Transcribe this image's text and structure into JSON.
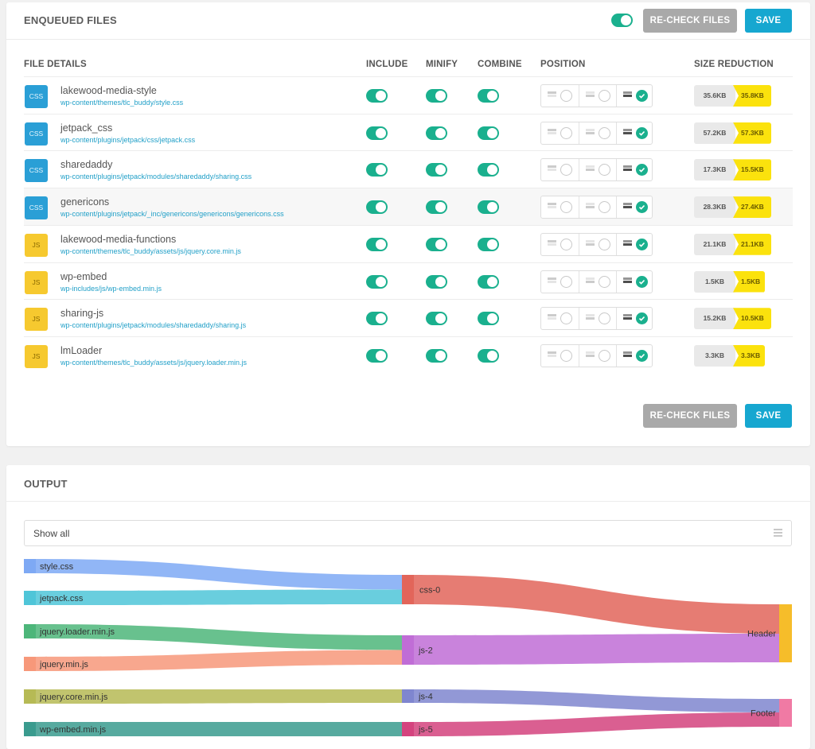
{
  "enqueued": {
    "title": "ENQUEUED FILES",
    "recheck_label": "RE-CHECK FILES",
    "save_label": "SAVE",
    "columns": {
      "file_details": "FILE DETAILS",
      "include": "INCLUDE",
      "minify": "MINIFY",
      "combine": "COMBINE",
      "position": "POSITION",
      "size_reduction": "SIZE REDUCTION"
    },
    "files": [
      {
        "type": "CSS",
        "name": "lakewood-media-style",
        "path": "wp-content/themes/tlc_buddy/style.css",
        "include": true,
        "minify": true,
        "combine": true,
        "position": "footer",
        "size_original": "35.6KB",
        "size_reduced": "35.8KB"
      },
      {
        "type": "CSS",
        "name": "jetpack_css",
        "path": "wp-content/plugins/jetpack/css/jetpack.css",
        "include": true,
        "minify": true,
        "combine": true,
        "position": "footer",
        "size_original": "57.2KB",
        "size_reduced": "57.3KB"
      },
      {
        "type": "CSS",
        "name": "sharedaddy",
        "path": "wp-content/plugins/jetpack/modules/sharedaddy/sharing.css",
        "include": true,
        "minify": true,
        "combine": true,
        "position": "footer",
        "size_original": "17.3KB",
        "size_reduced": "15.5KB"
      },
      {
        "type": "CSS",
        "name": "genericons",
        "path": "wp-content/plugins/jetpack/_inc/genericons/genericons/genericons.css",
        "include": true,
        "minify": true,
        "combine": true,
        "position": "footer",
        "size_original": "28.3KB",
        "size_reduced": "27.4KB"
      },
      {
        "type": "JS",
        "name": "lakewood-media-functions",
        "path": "wp-content/themes/tlc_buddy/assets/js/jquery.core.min.js",
        "include": true,
        "minify": true,
        "combine": true,
        "position": "footer",
        "size_original": "21.1KB",
        "size_reduced": "21.1KB"
      },
      {
        "type": "JS",
        "name": "wp-embed",
        "path": "wp-includes/js/wp-embed.min.js",
        "include": true,
        "minify": true,
        "combine": true,
        "position": "footer",
        "size_original": "1.5KB",
        "size_reduced": "1.5KB"
      },
      {
        "type": "JS",
        "name": "sharing-js",
        "path": "wp-content/plugins/jetpack/modules/sharedaddy/sharing.js",
        "include": true,
        "minify": true,
        "combine": true,
        "position": "footer",
        "size_original": "15.2KB",
        "size_reduced": "10.5KB"
      },
      {
        "type": "JS",
        "name": "lmLoader",
        "path": "wp-content/themes/tlc_buddy/assets/js/jquery.loader.min.js",
        "include": true,
        "minify": true,
        "combine": true,
        "position": "footer",
        "size_original": "3.3KB",
        "size_reduced": "3.3KB"
      }
    ]
  },
  "output": {
    "title": "OUTPUT",
    "filter_label": "Show all",
    "sources": [
      {
        "label": "style.css",
        "color": "#7ea9f4"
      },
      {
        "label": "jetpack.css",
        "color": "#4fc5d8"
      },
      {
        "label": "jquery.loader.min.js",
        "color": "#4db67a"
      },
      {
        "label": "jquery.min.js",
        "color": "#f7987a"
      },
      {
        "label": "jquery.core.min.js",
        "color": "#b6ba55"
      },
      {
        "label": "wp-embed.min.js",
        "color": "#3a9b8e"
      }
    ],
    "groups": [
      {
        "label": "css-0",
        "color": "#e2655a"
      },
      {
        "label": "js-2",
        "color": "#c06dd6"
      },
      {
        "label": "js-4",
        "color": "#7f86cf"
      },
      {
        "label": "js-5",
        "color": "#d4437e"
      }
    ],
    "targets": [
      {
        "label": "Header",
        "color": "#f6bd2a"
      },
      {
        "label": "Footer",
        "color": "#f07aa4"
      }
    ]
  }
}
